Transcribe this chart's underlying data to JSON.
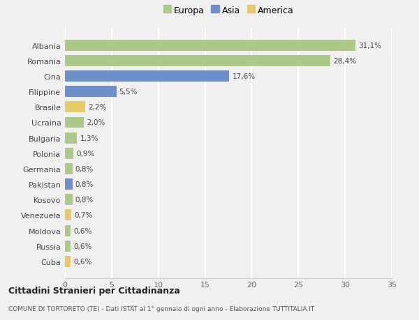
{
  "categories": [
    "Albania",
    "Romania",
    "Cina",
    "Filippine",
    "Brasile",
    "Ucraina",
    "Bulgaria",
    "Polonia",
    "Germania",
    "Pakistan",
    "Kosovo",
    "Venezuela",
    "Moldova",
    "Russia",
    "Cuba"
  ],
  "values": [
    31.1,
    28.4,
    17.6,
    5.5,
    2.2,
    2.0,
    1.3,
    0.9,
    0.8,
    0.8,
    0.8,
    0.7,
    0.6,
    0.6,
    0.6
  ],
  "labels": [
    "31,1%",
    "28,4%",
    "17,6%",
    "5,5%",
    "2,2%",
    "2,0%",
    "1,3%",
    "0,9%",
    "0,8%",
    "0,8%",
    "0,8%",
    "0,7%",
    "0,6%",
    "0,6%",
    "0,6%"
  ],
  "continents": [
    "Europa",
    "Europa",
    "Asia",
    "Asia",
    "America",
    "Europa",
    "Europa",
    "Europa",
    "Europa",
    "Asia",
    "Europa",
    "America",
    "Europa",
    "Europa",
    "America"
  ],
  "colors": {
    "Europa": "#adc98a",
    "Asia": "#6e8fc9",
    "America": "#e8c96a"
  },
  "xlim": [
    0,
    35
  ],
  "xticks": [
    0,
    5,
    10,
    15,
    20,
    25,
    30,
    35
  ],
  "background_color": "#f0f0f0",
  "grid_color": "#ffffff",
  "title": "Cittadini Stranieri per Cittadinanza",
  "subtitle": "COMUNE DI TORTORETO (TE) - Dati ISTAT al 1° gennaio di ogni anno - Elaborazione TUTTITALIA.IT",
  "legend_order": [
    "Europa",
    "Asia",
    "America"
  ]
}
